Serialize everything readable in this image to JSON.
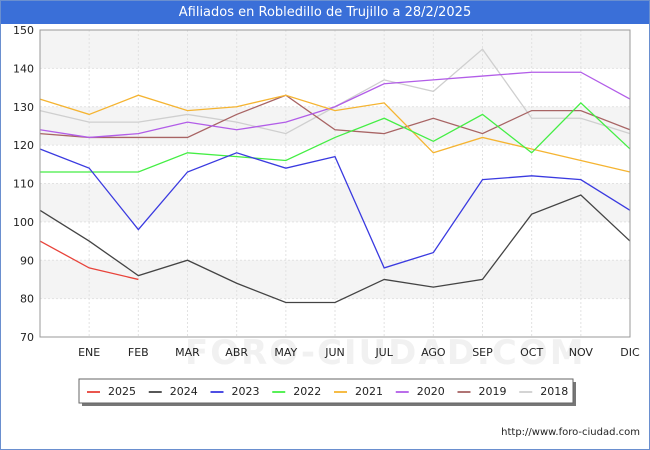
{
  "title": "Afiliados en Robledillo de Trujillo a 28/2/2025",
  "footer_url": "http://www.foro-ciudad.com",
  "watermark": "FORO-CIUDAD.COM",
  "chart_data": {
    "type": "line",
    "categories": [
      "",
      "ENE",
      "FEB",
      "MAR",
      "ABR",
      "MAY",
      "JUN",
      "JUL",
      "AGO",
      "SEP",
      "OCT",
      "NOV",
      "DIC"
    ],
    "ylim": [
      70,
      150
    ],
    "yticks": [
      70,
      80,
      90,
      100,
      110,
      120,
      130,
      140,
      150
    ],
    "grid": true,
    "legend_position": "bottom",
    "series": [
      {
        "name": "2025",
        "color": "#e8433a",
        "values": [
          95,
          88,
          85,
          null,
          null,
          null,
          null,
          null,
          null,
          null,
          null,
          null,
          null
        ]
      },
      {
        "name": "2024",
        "color": "#444444",
        "values": [
          103,
          95,
          86,
          90,
          84,
          79,
          79,
          85,
          83,
          85,
          102,
          107,
          95
        ]
      },
      {
        "name": "2023",
        "color": "#3a3ae0",
        "values": [
          119,
          114,
          98,
          113,
          118,
          114,
          117,
          88,
          92,
          111,
          112,
          111,
          103
        ]
      },
      {
        "name": "2022",
        "color": "#44ee44",
        "values": [
          113,
          113,
          113,
          118,
          117,
          116,
          122,
          127,
          121,
          128,
          118,
          131,
          119
        ]
      },
      {
        "name": "2021",
        "color": "#f5b431",
        "values": [
          132,
          128,
          133,
          129,
          130,
          133,
          129,
          131,
          118,
          122,
          119,
          116,
          113
        ]
      },
      {
        "name": "2020",
        "color": "#b25de8",
        "values": [
          124,
          122,
          123,
          126,
          124,
          126,
          130,
          136,
          137,
          138,
          139,
          139,
          132
        ]
      },
      {
        "name": "2019",
        "color": "#a86464",
        "values": [
          123,
          122,
          122,
          122,
          128,
          133,
          124,
          123,
          127,
          123,
          129,
          129,
          124
        ]
      },
      {
        "name": "2018",
        "color": "#cfcfcf",
        "values": [
          129,
          126,
          126,
          128,
          126,
          123,
          130,
          137,
          134,
          145,
          127,
          127,
          123
        ]
      }
    ]
  }
}
